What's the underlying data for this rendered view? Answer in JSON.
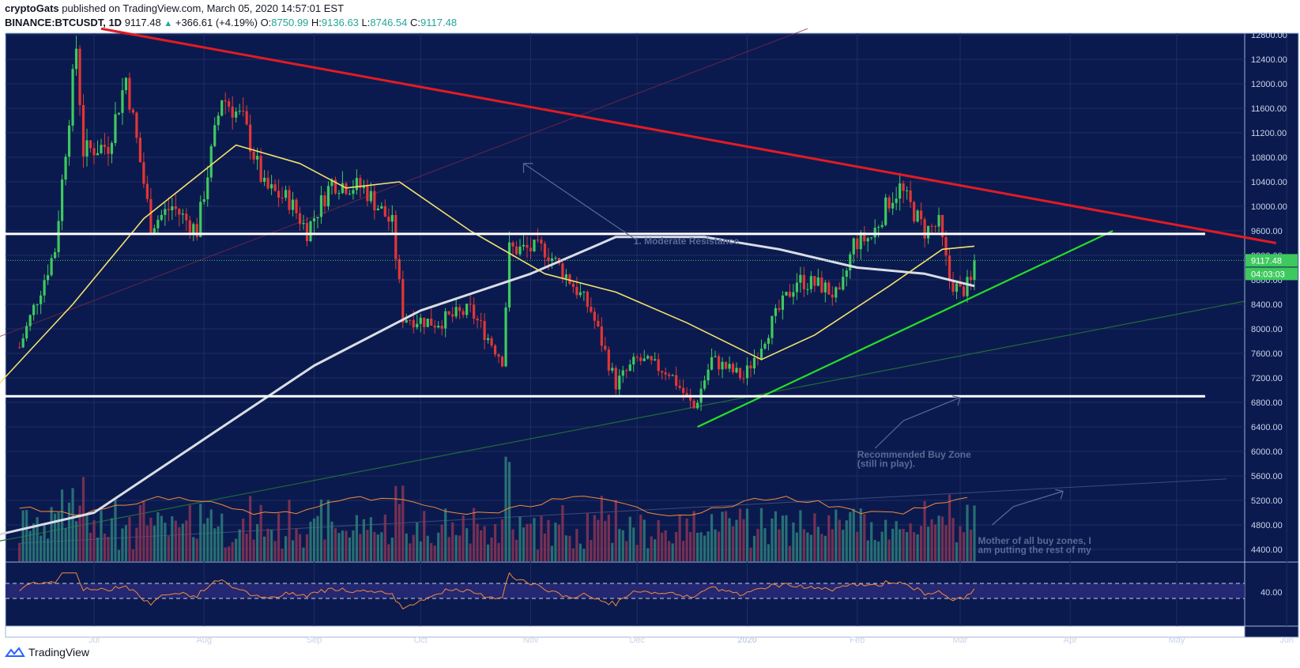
{
  "header": {
    "author": "cryptoGats",
    "published_text": "published on TradingView.com, March 05, 2020 14:57:01 EST",
    "symbol": "BINANCE:BTCUSDT, 1D",
    "last": "9117.48",
    "change": "+366.61 (+4.19%)",
    "open_label": "O:",
    "open": "8750.99",
    "high_label": "H:",
    "high": "9136.63",
    "low_label": "L:",
    "low": "8746.54",
    "close_label": "C:",
    "close": "9117.48"
  },
  "footer": {
    "brand": "TradingView",
    "logo_icon": "tradingview-logo-icon"
  },
  "colors": {
    "background": "#0b1a4e",
    "frame": "#9fb4d9",
    "candle_up": "#3ec95f",
    "candle_down": "#e23636",
    "ma50": "#f4e26a",
    "ma200": "#d9dde6",
    "trend_red": "#e21b23",
    "trend_green": "#25e025",
    "level_white": "#ffffff",
    "volume_up": "#2e7f7a",
    "volume_down": "#8a3556",
    "volume_ma": "#f08a3c",
    "rsi_line": "#f08a3c",
    "rsi_band": "#2b2a7a",
    "last_price_box": "#3ec95f"
  },
  "chart_data": {
    "type": "candlestick",
    "symbol": "BTCUSDT",
    "exchange": "BINANCE",
    "interval": "1D",
    "ylim": [
      4200,
      13000
    ],
    "yticks": [
      "12800.00",
      "12400.00",
      "12000.00",
      "11600.00",
      "11200.00",
      "10800.00",
      "10400.00",
      "10000.00",
      "9600.00",
      "9200.00",
      "8800.00",
      "8400.00",
      "8000.00",
      "7600.00",
      "7200.00",
      "6800.00",
      "6400.00",
      "6000.00",
      "5600.00",
      "5200.00",
      "4800.00",
      "4400.00"
    ],
    "month_labels": [
      "Jul",
      "Aug",
      "Sep",
      "Oct",
      "Nov",
      "Dec",
      "2020",
      "Feb",
      "Mar",
      "Apr",
      "May",
      "Jun",
      "Jul"
    ],
    "last_price_label": "9117.48",
    "countdown_label": "04:03:03",
    "close_path": [
      [
        "2019-06-10",
        7700
      ],
      [
        "2019-06-20",
        9300
      ],
      [
        "2019-06-26",
        12600
      ],
      [
        "2019-06-28",
        10900
      ],
      [
        "2019-07-05",
        11000
      ],
      [
        "2019-07-10",
        12100
      ],
      [
        "2019-07-17",
        9700
      ],
      [
        "2019-07-23",
        10000
      ],
      [
        "2019-07-30",
        9600
      ],
      [
        "2019-08-06",
        11800
      ],
      [
        "2019-08-12",
        11400
      ],
      [
        "2019-08-18",
        10300
      ],
      [
        "2019-08-25",
        10100
      ],
      [
        "2019-08-30",
        9600
      ],
      [
        "2019-09-06",
        10400
      ],
      [
        "2019-09-15",
        10300
      ],
      [
        "2019-09-23",
        9700
      ],
      [
        "2019-09-26",
        8200
      ],
      [
        "2019-10-05",
        8100
      ],
      [
        "2019-10-15",
        8300
      ],
      [
        "2019-10-24",
        7500
      ],
      [
        "2019-10-26",
        9300
      ],
      [
        "2019-11-05",
        9300
      ],
      [
        "2019-11-12",
        8800
      ],
      [
        "2019-11-18",
        8300
      ],
      [
        "2019-11-25",
        7100
      ],
      [
        "2019-12-01",
        7500
      ],
      [
        "2019-12-10",
        7300
      ],
      [
        "2019-12-17",
        6700
      ],
      [
        "2019-12-22",
        7500
      ],
      [
        "2019-12-31",
        7200
      ],
      [
        "2020-01-08",
        8100
      ],
      [
        "2020-01-15",
        8800
      ],
      [
        "2020-01-22",
        8700
      ],
      [
        "2020-01-27",
        8500
      ],
      [
        "2020-01-31",
        9400
      ],
      [
        "2020-02-05",
        9500
      ],
      [
        "2020-02-10",
        10100
      ],
      [
        "2020-02-13",
        10300
      ],
      [
        "2020-02-17",
        9900
      ],
      [
        "2020-02-20",
        9600
      ],
      [
        "2020-02-24",
        9700
      ],
      [
        "2020-02-27",
        8800
      ],
      [
        "2020-03-01",
        8600
      ],
      [
        "2020-03-04",
        8750
      ],
      [
        "2020-03-05",
        9117
      ]
    ],
    "ma50_path": [
      [
        "2019-06-01",
        6900
      ],
      [
        "2019-06-25",
        8400
      ],
      [
        "2019-07-15",
        9800
      ],
      [
        "2019-08-10",
        11000
      ],
      [
        "2019-08-28",
        10700
      ],
      [
        "2019-09-10",
        10300
      ],
      [
        "2019-09-25",
        10400
      ],
      [
        "2019-10-15",
        9600
      ],
      [
        "2019-11-05",
        8900
      ],
      [
        "2019-11-25",
        8600
      ],
      [
        "2019-12-15",
        8100
      ],
      [
        "2020-01-05",
        7500
      ],
      [
        "2020-01-20",
        7900
      ],
      [
        "2020-02-10",
        8700
      ],
      [
        "2020-02-25",
        9300
      ],
      [
        "2020-03-05",
        9350
      ]
    ],
    "ma200_path": [
      [
        "2019-06-01",
        4600
      ],
      [
        "2019-07-01",
        5000
      ],
      [
        "2019-08-01",
        6200
      ],
      [
        "2019-09-01",
        7400
      ],
      [
        "2019-10-01",
        8300
      ],
      [
        "2019-11-01",
        8900
      ],
      [
        "2019-11-25",
        9500
      ],
      [
        "2019-12-20",
        9500
      ],
      [
        "2020-01-10",
        9300
      ],
      [
        "2020-02-01",
        9000
      ],
      [
        "2020-02-20",
        8900
      ],
      [
        "2020-03-05",
        8700
      ]
    ],
    "lines": [
      {
        "name": "descending-resistance",
        "color": "red",
        "from": [
          "2019-07-03",
          12900
        ],
        "to": [
          "2020-05-29",
          9400
        ]
      },
      {
        "name": "ascending-support",
        "color": "green",
        "from": [
          "2019-12-18",
          6400
        ],
        "to": [
          "2020-04-13",
          9600
        ]
      },
      {
        "name": "resistance-level",
        "color": "white",
        "value": 9550,
        "from": "2019-06-01",
        "to": "2020-05-09"
      },
      {
        "name": "buy-zone-level",
        "color": "white",
        "value": 6900,
        "from": "2019-06-01",
        "to": "2020-05-09"
      }
    ],
    "annotations": [
      {
        "text": "1. Moderate Resistance",
        "date": "2019-11-30",
        "price": 9380
      },
      {
        "text": "Recommended Buy Zone",
        "date": "2020-02-01",
        "price": 5900
      },
      {
        "text": "(still in play).",
        "date": "2020-02-01",
        "price": 5750
      },
      {
        "text": "Mother of all buy zones, I",
        "date": "2020-03-06",
        "price": 4490
      },
      {
        "text": "am putting the rest of my",
        "date": "2020-03-06",
        "price": 4340
      }
    ],
    "volume": {
      "unit": "relative",
      "max_relative": 1.0
    },
    "rsi": {
      "label": "40.00",
      "upper": 60,
      "lower": 40
    }
  }
}
